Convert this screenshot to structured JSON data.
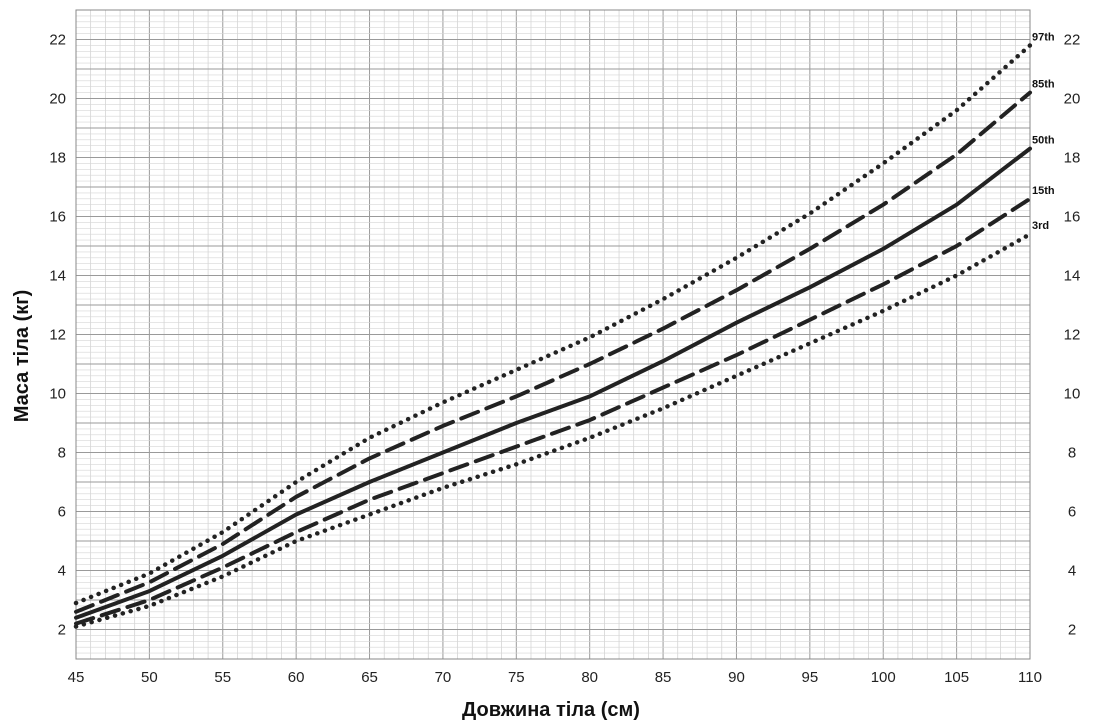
{
  "chart_data": {
    "type": "line",
    "xlabel": "Довжина тіла (см)",
    "ylabel": "Маса тіла (кг)",
    "xlim": [
      45,
      110
    ],
    "ylim": [
      1,
      23
    ],
    "x_ticks": [
      45,
      50,
      55,
      60,
      65,
      70,
      75,
      80,
      85,
      90,
      95,
      100,
      105,
      110
    ],
    "y_ticks": [
      2,
      4,
      6,
      8,
      10,
      12,
      14,
      16,
      18,
      20,
      22
    ],
    "grid": true,
    "y_axis_both_sides": true,
    "x": [
      45,
      50,
      55,
      60,
      65,
      70,
      75,
      80,
      85,
      90,
      95,
      100,
      105,
      110
    ],
    "series": [
      {
        "name": "97th",
        "style": "dotted",
        "values": [
          2.9,
          3.9,
          5.3,
          7.0,
          8.5,
          9.7,
          10.8,
          11.9,
          13.2,
          14.6,
          16.1,
          17.8,
          19.6,
          21.8
        ]
      },
      {
        "name": "85th",
        "style": "dashed",
        "values": [
          2.6,
          3.6,
          4.9,
          6.5,
          7.8,
          8.9,
          9.9,
          11.0,
          12.2,
          13.5,
          14.9,
          16.4,
          18.1,
          20.2
        ]
      },
      {
        "name": "50th",
        "style": "solid",
        "values": [
          2.4,
          3.3,
          4.5,
          5.9,
          7.0,
          8.0,
          9.0,
          9.9,
          11.1,
          12.4,
          13.6,
          14.9,
          16.4,
          18.3
        ]
      },
      {
        "name": "15th",
        "style": "dashed",
        "values": [
          2.2,
          3.0,
          4.1,
          5.3,
          6.4,
          7.3,
          8.2,
          9.1,
          10.2,
          11.3,
          12.5,
          13.7,
          15.0,
          16.6
        ]
      },
      {
        "name": "3rd",
        "style": "dotted",
        "values": [
          2.1,
          2.8,
          3.8,
          5.0,
          5.9,
          6.8,
          7.6,
          8.5,
          9.5,
          10.6,
          11.7,
          12.8,
          14.0,
          15.4
        ]
      }
    ]
  }
}
